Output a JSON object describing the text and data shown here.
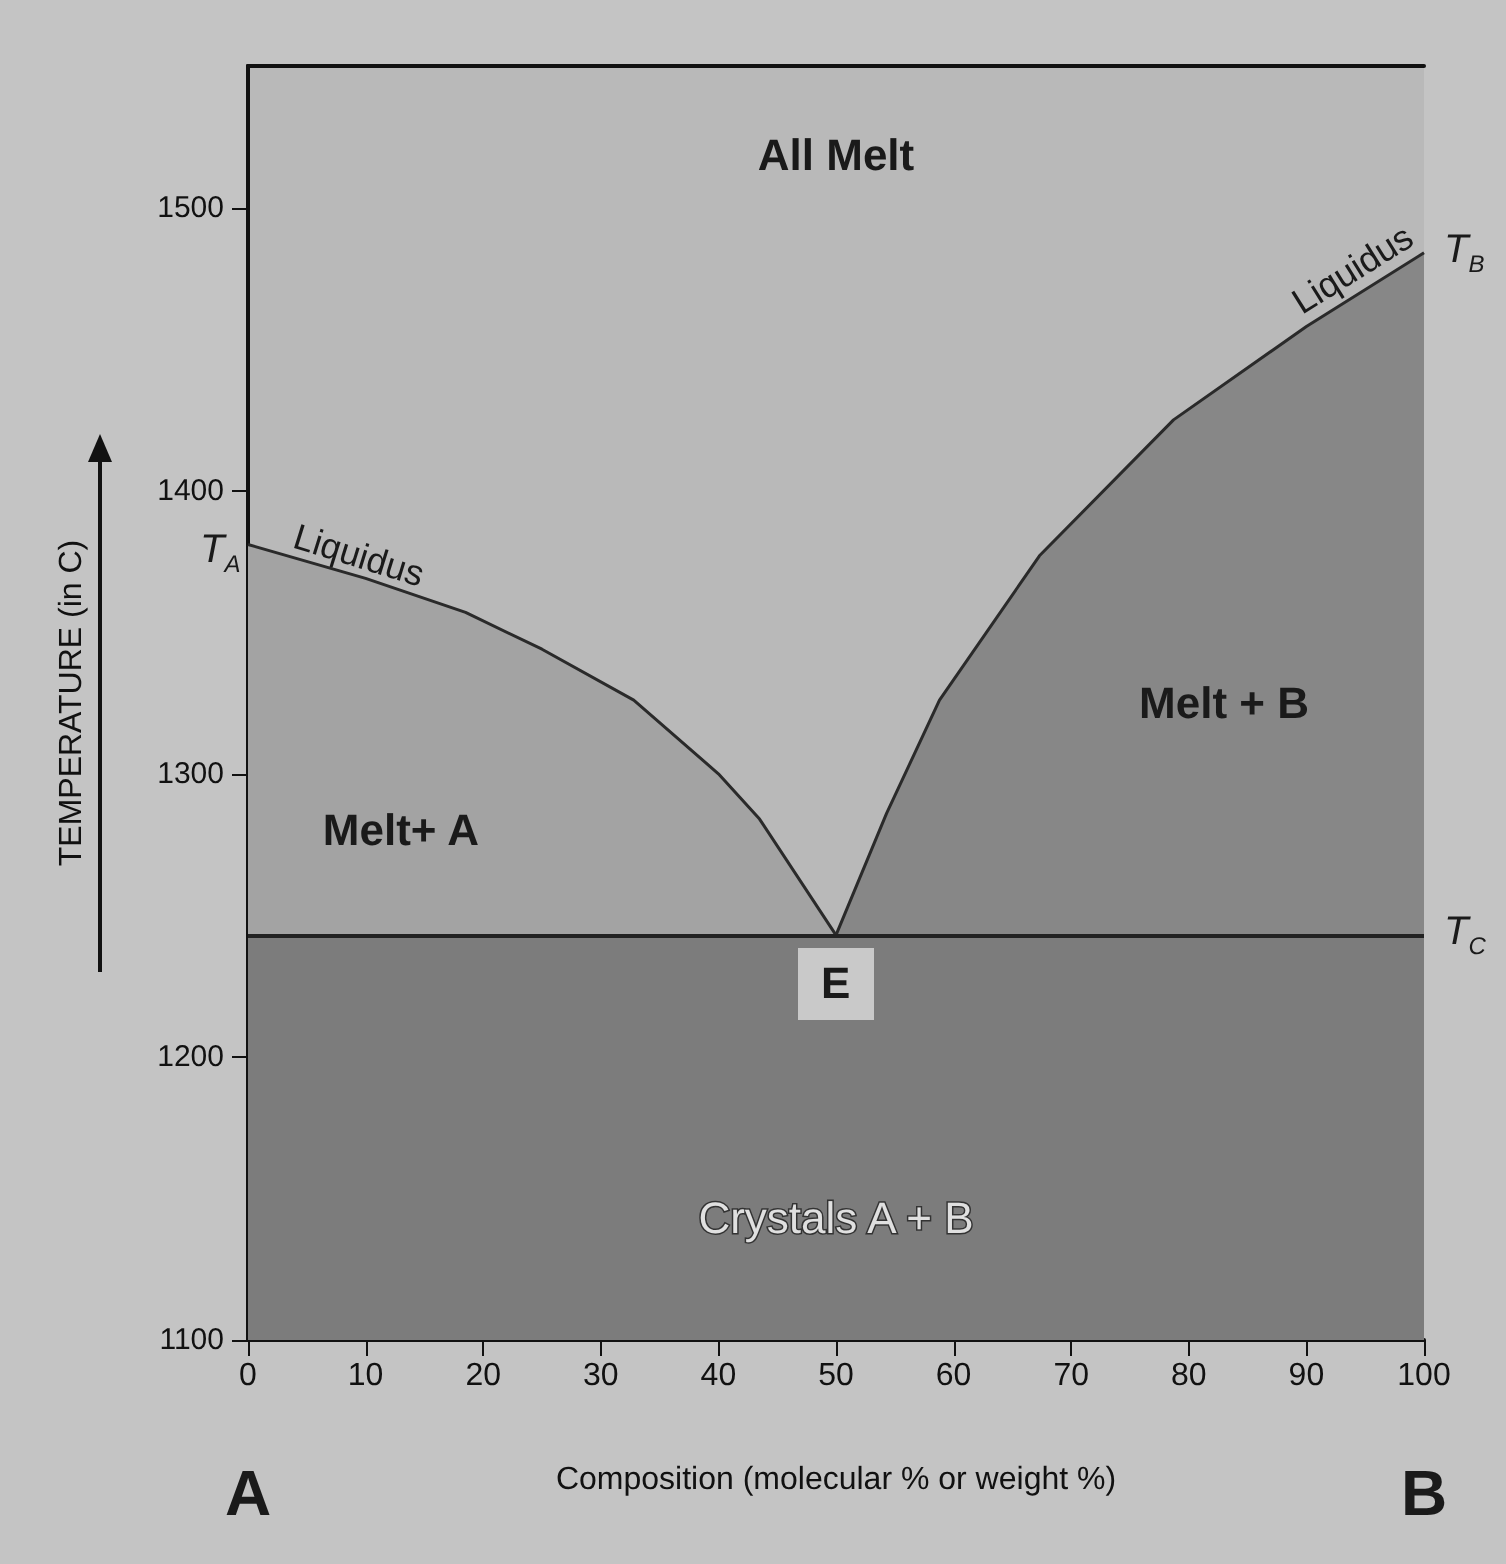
{
  "chart_data": {
    "type": "area",
    "xlabel": "Composition (molecular % or weight %)",
    "ylabel": "TEMPERATURE (in C)",
    "xlim": [
      0,
      100
    ],
    "xticks": [
      0,
      10,
      20,
      30,
      40,
      50,
      60,
      70,
      80,
      90,
      100
    ],
    "ylim": [
      1100,
      1550
    ],
    "yticks": [
      1100,
      1200,
      1300,
      1400,
      1500
    ],
    "grid": false,
    "legend": false,
    "marker": "none",
    "line_style": "solid",
    "series": [
      {
        "name": "Liquidus",
        "color": "#a3a3a3",
        "x": [
          0,
          10,
          18.5,
          25,
          32.8,
          40,
          43.5,
          50
        ],
        "values": [
          1381,
          1369,
          1357,
          1344,
          1326,
          1300,
          1284,
          1243
        ]
      },
      {
        "name": "Liquidus",
        "color": "#878787",
        "x": [
          50,
          54.3,
          58.8,
          67.3,
          78.7,
          90,
          100
        ],
        "values": [
          1243,
          1286,
          1326,
          1377,
          1425,
          1458,
          1484
        ]
      }
    ],
    "ref_lines": [
      {
        "axis": "y",
        "value": 1243,
        "label": "T$_{C}$",
        "color": "#222222"
      }
    ],
    "bands": [
      {
        "axis": "y",
        "from": 1100,
        "to": 1243,
        "label": "Crystals A + B",
        "color": "#7c7c7c"
      }
    ],
    "annotations": [
      "All Melt",
      "Melt+ A",
      "Melt + B",
      {
        "text": "E",
        "x": 50,
        "y": 1243
      },
      {
        "text": "T$_{A}$",
        "x": 0,
        "y": 1381
      },
      {
        "text": "T$_{B}$",
        "x": 100,
        "y": 1484
      },
      "A",
      "B"
    ]
  }
}
